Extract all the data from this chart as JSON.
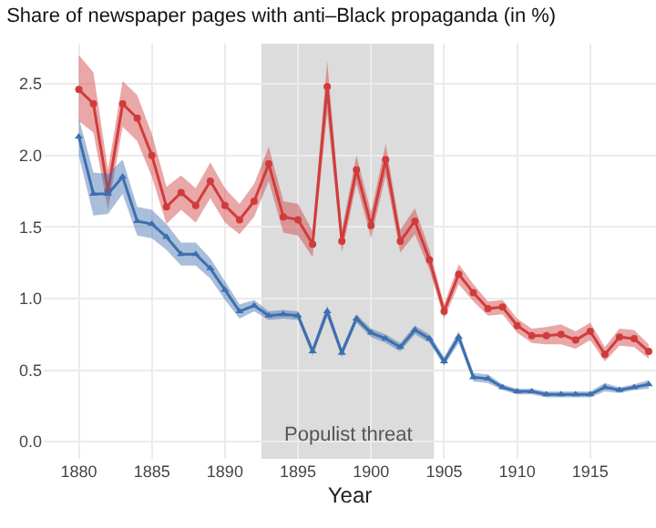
{
  "chart_data": {
    "type": "line",
    "title": "Share of newspaper pages with anti–Black propaganda (in %)",
    "xlabel": "Year",
    "x": [
      1880,
      1881,
      1882,
      1883,
      1884,
      1885,
      1886,
      1887,
      1888,
      1889,
      1890,
      1891,
      1892,
      1893,
      1894,
      1895,
      1896,
      1897,
      1898,
      1899,
      1900,
      1901,
      1902,
      1903,
      1904,
      1905,
      1906,
      1907,
      1908,
      1909,
      1910,
      1911,
      1912,
      1913,
      1914,
      1915,
      1916,
      1917,
      1918,
      1919
    ],
    "series": [
      {
        "color": "#d03c3c",
        "marker": "circle",
        "values": [
          2.46,
          2.36,
          1.75,
          2.36,
          2.26,
          2.0,
          1.64,
          1.74,
          1.65,
          1.82,
          1.65,
          1.55,
          1.68,
          1.94,
          1.57,
          1.55,
          1.38,
          2.48,
          1.4,
          1.9,
          1.51,
          1.97,
          1.4,
          1.54,
          1.27,
          0.91,
          1.17,
          1.04,
          0.93,
          0.94,
          0.81,
          0.74,
          0.74,
          0.75,
          0.71,
          0.77,
          0.61,
          0.73,
          0.72,
          0.63
        ],
        "lower": [
          2.24,
          2.16,
          1.62,
          2.2,
          2.1,
          1.85,
          1.52,
          1.62,
          1.53,
          1.7,
          1.53,
          1.45,
          1.57,
          1.82,
          1.46,
          1.44,
          1.29,
          2.3,
          1.32,
          1.8,
          1.42,
          1.86,
          1.32,
          1.45,
          1.2,
          0.86,
          1.1,
          0.98,
          0.88,
          0.89,
          0.76,
          0.69,
          0.68,
          0.68,
          0.65,
          0.71,
          0.56,
          0.67,
          0.66,
          0.58
        ],
        "upper": [
          2.7,
          2.58,
          1.9,
          2.52,
          2.42,
          2.15,
          1.78,
          1.86,
          1.77,
          1.95,
          1.77,
          1.66,
          1.8,
          2.06,
          1.68,
          1.66,
          1.47,
          2.66,
          1.48,
          2.0,
          1.6,
          2.08,
          1.48,
          1.63,
          1.34,
          0.96,
          1.24,
          1.1,
          0.98,
          0.99,
          0.86,
          0.79,
          0.8,
          0.82,
          0.77,
          0.83,
          0.66,
          0.79,
          0.78,
          0.68
        ]
      },
      {
        "color": "#3d6fb0",
        "marker": "triangle",
        "values": [
          2.13,
          1.73,
          1.73,
          1.85,
          1.54,
          1.52,
          1.43,
          1.31,
          1.31,
          1.21,
          1.06,
          0.91,
          0.95,
          0.88,
          0.89,
          0.88,
          0.63,
          0.91,
          0.62,
          0.86,
          0.76,
          0.72,
          0.66,
          0.78,
          0.72,
          0.56,
          0.73,
          0.45,
          0.44,
          0.38,
          0.35,
          0.35,
          0.33,
          0.33,
          0.33,
          0.33,
          0.38,
          0.36,
          0.38,
          0.4
        ],
        "lower": [
          2.0,
          1.58,
          1.59,
          1.73,
          1.44,
          1.42,
          1.34,
          1.23,
          1.23,
          1.14,
          0.99,
          0.86,
          0.91,
          0.85,
          0.86,
          0.85,
          0.6,
          0.87,
          0.59,
          0.83,
          0.73,
          0.69,
          0.63,
          0.75,
          0.69,
          0.53,
          0.69,
          0.42,
          0.41,
          0.36,
          0.33,
          0.33,
          0.31,
          0.31,
          0.31,
          0.31,
          0.35,
          0.34,
          0.36,
          0.37
        ],
        "upper": [
          2.26,
          1.88,
          1.87,
          1.97,
          1.64,
          1.62,
          1.52,
          1.39,
          1.39,
          1.28,
          1.12,
          0.96,
          0.99,
          0.91,
          0.92,
          0.91,
          0.66,
          0.95,
          0.65,
          0.89,
          0.79,
          0.75,
          0.69,
          0.81,
          0.75,
          0.59,
          0.77,
          0.48,
          0.47,
          0.4,
          0.37,
          0.37,
          0.35,
          0.35,
          0.35,
          0.35,
          0.41,
          0.38,
          0.4,
          0.43
        ]
      }
    ],
    "xlim": [
      1877.6,
      1919.5
    ],
    "xticks": [
      1880,
      1885,
      1890,
      1895,
      1900,
      1905,
      1910,
      1915
    ],
    "ylim": [
      -0.12,
      2.78
    ],
    "yticks": [
      {
        "value": 0,
        "label": "0.0"
      },
      {
        "value": 0.5,
        "label": "0.5"
      },
      {
        "value": 1,
        "label": "1.0"
      },
      {
        "value": 1.5,
        "label": "1.5"
      },
      {
        "value": 2,
        "label": "2.0"
      },
      {
        "value": 2.5,
        "label": "2.5"
      }
    ],
    "bands": [
      {
        "axis": "x",
        "from": 1892.5,
        "to": 1904.3,
        "label": "Populist threat",
        "color": "#dcdcdc"
      }
    ],
    "grid": true,
    "line_style": "solid"
  }
}
